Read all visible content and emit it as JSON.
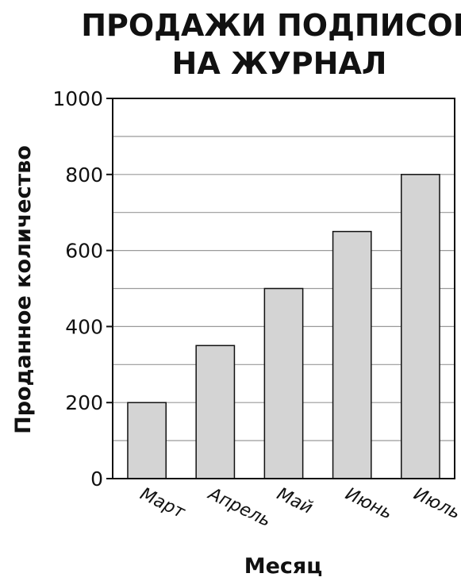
{
  "chart_data": {
    "type": "bar",
    "title_lines": [
      "ПРОДАЖИ ПОДПИСОК",
      "НА ЖУРНАЛ"
    ],
    "xlabel": "Месяц",
    "ylabel": "Проданное количество",
    "categories": [
      "Март",
      "Апрель",
      "Май",
      "Июнь",
      "Июль"
    ],
    "values": [
      200,
      350,
      500,
      650,
      800
    ],
    "ylim": [
      0,
      1000
    ],
    "yticks": [
      0,
      200,
      400,
      600,
      800,
      1000
    ],
    "grid": true,
    "colors": {
      "bar_fill": "#d4d4d4",
      "bar_stroke": "#111111",
      "grid": "#9a9a9a",
      "axis": "#111111"
    }
  }
}
